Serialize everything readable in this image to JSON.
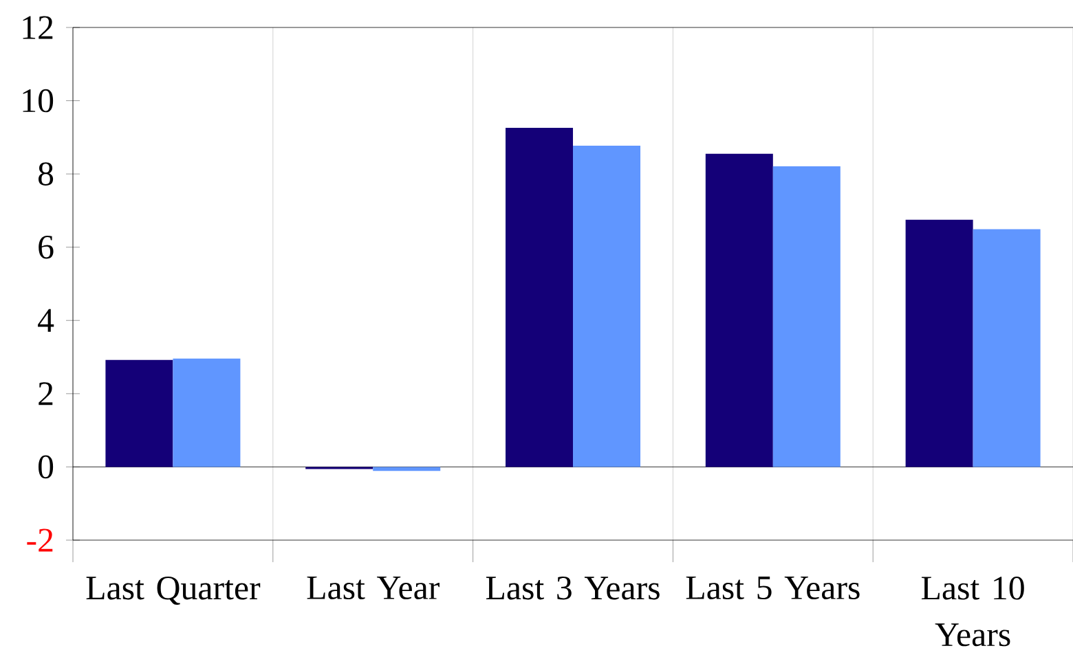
{
  "chart_data": {
    "type": "bar",
    "categories": [
      "Last Quarter",
      "Last Year",
      "Last 3 Years",
      "Last 5 Years",
      "Last 10 Years"
    ],
    "series": [
      {
        "color": "#140078",
        "values": [
          2.92,
          -0.06,
          9.26,
          8.55,
          6.75
        ]
      },
      {
        "color": "#6096ff",
        "values": [
          2.96,
          -0.11,
          8.77,
          8.21,
          6.49
        ]
      }
    ],
    "ylim": [
      -2,
      12
    ],
    "yticks": [
      -2,
      0,
      2,
      4,
      6,
      8,
      10,
      12
    ],
    "grid": "x"
  }
}
